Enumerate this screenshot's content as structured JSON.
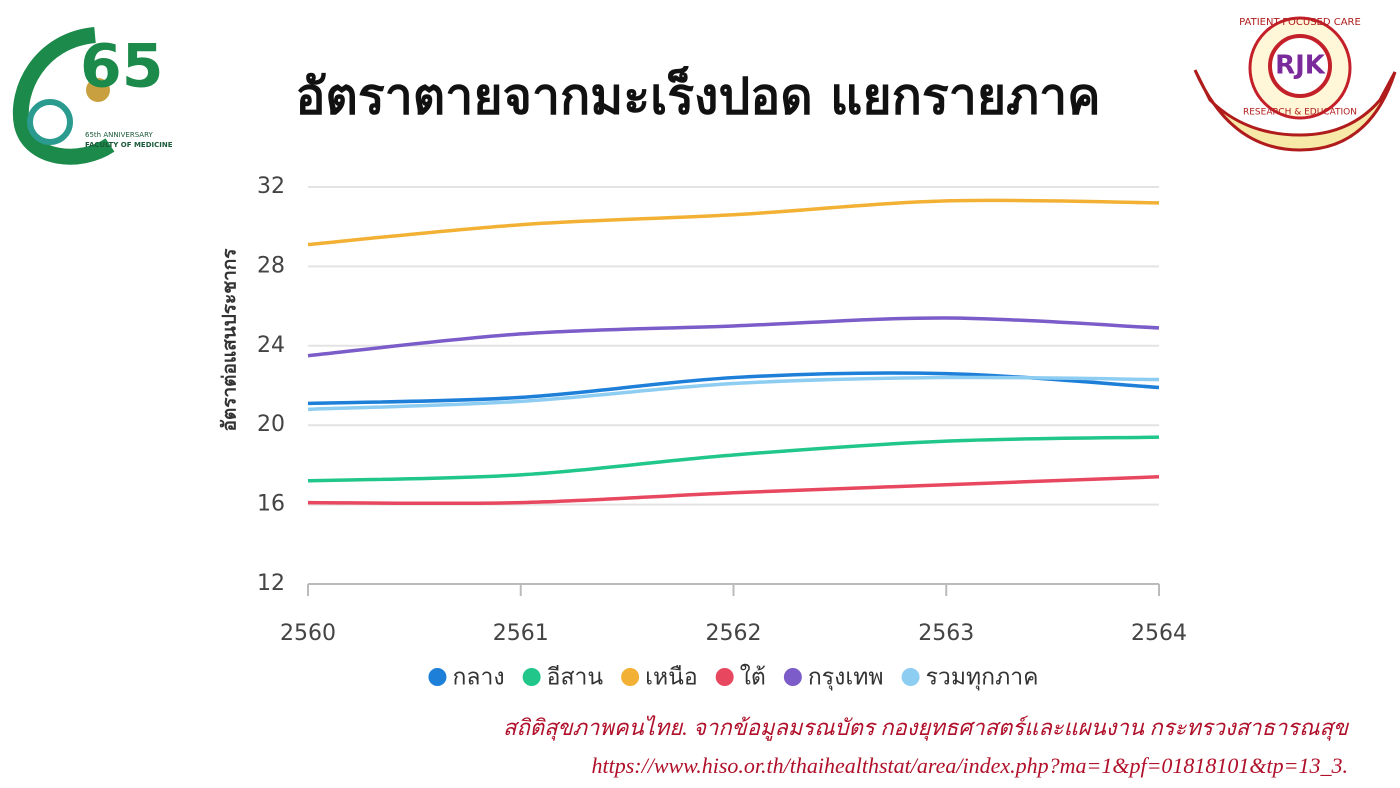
{
  "header": {
    "title": "อัตราตายจากมะเร็งปอด แยกรายภาค"
  },
  "logos": {
    "left": {
      "number": "65",
      "caption": "65th ANNIVERSARY",
      "faculty": "FACULTY OF MEDICINE"
    },
    "right": {
      "mark": "RJK",
      "top_text": "PATIENT-FOCUSED CARE",
      "bottom_text": "RESEARCH & EDUCATION"
    }
  },
  "chart_data": {
    "type": "line",
    "y_label": "อัตราต่อแสนประชากร",
    "x": [
      2560,
      2561,
      2562,
      2563,
      2564
    ],
    "xlim": [
      2560,
      2564
    ],
    "xticks": [
      2560,
      2561,
      2562,
      2563,
      2564
    ],
    "ylim": [
      12,
      32
    ],
    "yticks": [
      12,
      16,
      20,
      24,
      28,
      32
    ],
    "grid": true,
    "legend": "bottom",
    "series": [
      {
        "name": "กลาง",
        "color": "#1e7fd8",
        "values": [
          21.1,
          21.4,
          22.4,
          22.6,
          21.9
        ]
      },
      {
        "name": "อีสาน",
        "color": "#21c78a",
        "values": [
          17.2,
          17.5,
          18.5,
          19.2,
          19.4
        ]
      },
      {
        "name": "เหนือ",
        "color": "#f2b134",
        "values": [
          29.1,
          30.1,
          30.6,
          31.3,
          31.2
        ]
      },
      {
        "name": "ใต้",
        "color": "#e8485f",
        "values": [
          16.1,
          16.1,
          16.6,
          17.0,
          17.4
        ]
      },
      {
        "name": "กรุงเทพ",
        "color": "#7b5cc8",
        "values": [
          23.5,
          24.6,
          25.0,
          25.4,
          24.9
        ]
      },
      {
        "name": "รวมทุกภาค",
        "color": "#8ecdf2",
        "values": [
          20.8,
          21.2,
          22.1,
          22.4,
          22.3
        ]
      }
    ]
  },
  "source": {
    "line1": "สถิติสุขภาพคนไทย. จากข้อมูลมรณบัตร กองยุทธศาสตร์และแผนงาน กระทรวงสาธารณสุข",
    "line2": "https://www.hiso.or.th/thaihealthstat/area/index.php?ma=1&pf=01818101&tp=13_3."
  }
}
